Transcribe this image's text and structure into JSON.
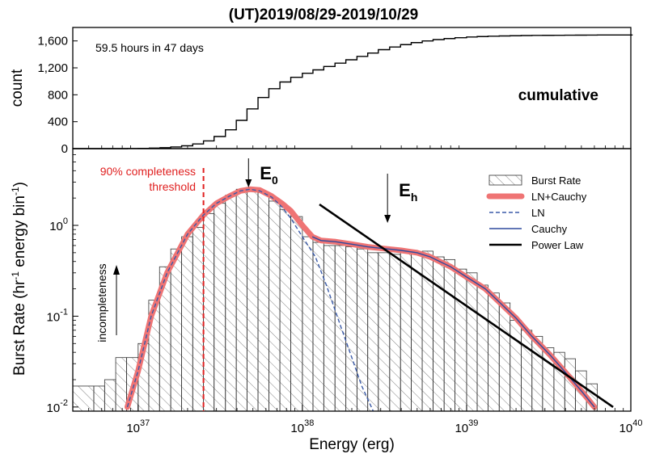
{
  "colors": {
    "hist_edge": "#333333",
    "ln_cauchy": "#ef7474",
    "ln": "#3a5aa8",
    "cauchy": "#2e4a9e",
    "power_law": "#000000",
    "threshold": "#e02020"
  },
  "chart_data": [
    {
      "type": "line",
      "title": "(UT)2019/08/29-2019/10/29",
      "ylabel": "count",
      "label": "cumulative",
      "annotation": "59.5 hours in 47 days",
      "xscale": "log",
      "xlim": [
        4e+36,
        1e+40
      ],
      "ylim": [
        0,
        1800
      ],
      "yticks": [
        0,
        400,
        800,
        1200,
        1600
      ],
      "ytick_labels": [
        "0",
        "400",
        "800",
        "1,200",
        "1,600"
      ],
      "step": true,
      "x": [
        4e+36,
        8.6e+36,
        1e+37,
        1.17e+37,
        1.36e+37,
        1.58e+37,
        1.84e+37,
        2.15e+37,
        2.5e+37,
        2.9e+37,
        3.4e+37,
        3.96e+37,
        4.6e+37,
        5.37e+37,
        6.25e+37,
        7.3e+37,
        8.5e+37,
        1e+38,
        1.16e+38,
        1.35e+38,
        1.58e+38,
        1.84e+38,
        2.15e+38,
        2.5e+38,
        2.9e+38,
        3.4e+38,
        3.96e+38,
        4.6e+38,
        5.37e+38,
        6.25e+38,
        7.3e+38,
        8.5e+38,
        1e+39,
        1.16e+39,
        1.35e+39,
        1.58e+39,
        1.84e+39,
        2.15e+39,
        2.5e+39,
        2.9e+39,
        3.4e+39,
        3.96e+39,
        4.6e+39,
        5.37e+39,
        6.25e+39,
        7.3e+39
      ],
      "y": [
        0,
        2,
        4,
        8,
        14,
        25,
        42,
        70,
        115,
        180,
        280,
        420,
        590,
        760,
        890,
        990,
        1060,
        1120,
        1170,
        1220,
        1270,
        1320,
        1370,
        1420,
        1470,
        1510,
        1545,
        1575,
        1600,
        1620,
        1635,
        1648,
        1658,
        1665,
        1670,
        1674,
        1677,
        1680,
        1682,
        1683,
        1684,
        1685,
        1686,
        1687,
        1688,
        1688
      ]
    },
    {
      "type": "bar",
      "xlabel": "Energy (erg)",
      "ylabel": "Burst Rate (hr-1 energy bin-1)",
      "xscale": "log",
      "yscale": "log",
      "xlim": [
        4e+36,
        1e+40
      ],
      "ylim": [
        0.009,
        7
      ],
      "xticks": [
        1e+37,
        1e+38,
        1e+39,
        1e+40
      ],
      "xtick_labels": [
        {
          "base": "10",
          "exp": "37"
        },
        {
          "base": "10",
          "exp": "38"
        },
        {
          "base": "10",
          "exp": "39"
        },
        {
          "base": "10",
          "exp": "40"
        }
      ],
      "yticks": [
        0.01,
        0.1,
        1
      ],
      "ytick_labels": [
        {
          "base": "10",
          "exp": "-2"
        },
        {
          "base": "10",
          "exp": "-1"
        },
        {
          "base": "10",
          "exp": "0"
        }
      ],
      "hist": {
        "name": "Burst Rate",
        "bin_edges": [
          4e+36,
          5.37e+36,
          6.25e+36,
          7.3e+36,
          8.5e+36,
          1e+37,
          1.16e+37,
          1.35e+37,
          1.58e+37,
          1.84e+37,
          2.15e+37,
          2.5e+37,
          2.9e+37,
          3.4e+37,
          3.96e+37,
          4.6e+37,
          5.37e+37,
          6.25e+37,
          7.3e+37,
          8.5e+37,
          1e+38,
          1.16e+38,
          1.35e+38,
          1.58e+38,
          1.84e+38,
          2.15e+38,
          2.5e+38,
          2.9e+38,
          3.4e+38,
          3.96e+38,
          4.6e+38,
          5.37e+38,
          6.25e+38,
          7.3e+38,
          8.5e+38,
          1e+39,
          1.16e+39,
          1.35e+39,
          1.58e+39,
          1.84e+39,
          2.15e+39,
          2.5e+39,
          2.9e+39,
          3.4e+39,
          3.96e+39,
          4.6e+39,
          5.37e+39,
          6.25e+39
        ],
        "values": [
          0.017,
          0.017,
          0.02,
          0.035,
          0.035,
          0.05,
          0.15,
          0.35,
          0.55,
          0.75,
          0.95,
          1.35,
          1.75,
          2.15,
          2.5,
          2.5,
          2.3,
          1.85,
          1.5,
          1.25,
          0.75,
          0.65,
          0.6,
          0.6,
          0.58,
          0.55,
          0.5,
          0.5,
          0.48,
          0.5,
          0.5,
          0.52,
          0.45,
          0.42,
          0.33,
          0.3,
          0.22,
          0.18,
          0.14,
          0.09,
          0.07,
          0.06,
          0.045,
          0.04,
          0.034,
          0.025,
          0.018
        ]
      },
      "series": [
        {
          "name": "LN+Cauchy",
          "x": [
            8.6e+36,
            1e+37,
            1.2e+37,
            1.5e+37,
            2e+37,
            2.5e+37,
            3e+37,
            3.6e+37,
            4.2e+37,
            4.8e+37,
            5.5e+37,
            6.5e+37,
            7.5e+37,
            8.5e+37,
            1e+38,
            1.15e+38,
            1.3e+38,
            1.6e+38,
            2e+38,
            2.5e+38,
            3e+38,
            4e+38,
            5e+38,
            6e+38,
            8e+38,
            1e+39,
            1.3e+39,
            1.6e+39,
            2e+39,
            2.5e+39,
            3.2e+39,
            4e+39,
            5e+39,
            6e+39
          ],
          "y": [
            0.01,
            0.025,
            0.1,
            0.3,
            0.8,
            1.3,
            1.75,
            2.1,
            2.4,
            2.5,
            2.45,
            2.1,
            1.75,
            1.45,
            1.0,
            0.75,
            0.68,
            0.66,
            0.62,
            0.58,
            0.56,
            0.53,
            0.5,
            0.45,
            0.35,
            0.27,
            0.2,
            0.14,
            0.095,
            0.06,
            0.038,
            0.024,
            0.015,
            0.01
          ]
        },
        {
          "name": "LN",
          "x": [
            8.6e+36,
            1e+37,
            1.2e+37,
            1.5e+37,
            2e+37,
            2.5e+37,
            3e+37,
            3.6e+37,
            4.2e+37,
            4.8e+37,
            5.5e+37,
            6.5e+37,
            7.5e+37,
            8.5e+37,
            1e+38,
            1.2e+38,
            1.4e+38,
            1.7e+38,
            2e+38,
            2.3e+38,
            2.7e+38
          ],
          "y": [
            0.01,
            0.025,
            0.1,
            0.3,
            0.8,
            1.3,
            1.75,
            2.1,
            2.4,
            2.5,
            2.4,
            2.05,
            1.6,
            1.2,
            0.75,
            0.45,
            0.22,
            0.08,
            0.035,
            0.017,
            0.009
          ]
        },
        {
          "name": "Cauchy",
          "x": [
            1.15e+38,
            1.3e+38,
            1.6e+38,
            2e+38,
            2.5e+38,
            3e+38,
            4e+38,
            5e+38,
            6e+38,
            8e+38,
            1e+39,
            1.3e+39,
            1.6e+39,
            2e+39,
            2.5e+39,
            3.2e+39,
            4e+39,
            5e+39,
            6e+39
          ],
          "y": [
            0.75,
            0.68,
            0.66,
            0.62,
            0.58,
            0.56,
            0.53,
            0.5,
            0.45,
            0.35,
            0.27,
            0.2,
            0.14,
            0.095,
            0.06,
            0.038,
            0.024,
            0.015,
            0.01
          ]
        },
        {
          "name": "Power Law",
          "x": [
            1.27e+38,
            7.8e+39
          ],
          "y": [
            1.7,
            0.01
          ]
        }
      ],
      "threshold": {
        "x": 2.5e+37,
        "label_line1": "90% completeness",
        "label_line2": "threshold"
      },
      "markers": [
        {
          "x": 4.7e+37,
          "label": "E",
          "sub": "0"
        },
        {
          "x": 3.3e+38,
          "label": "E",
          "sub": "h"
        }
      ],
      "side_annotation": "incompleteness",
      "legend": "top-right"
    }
  ]
}
